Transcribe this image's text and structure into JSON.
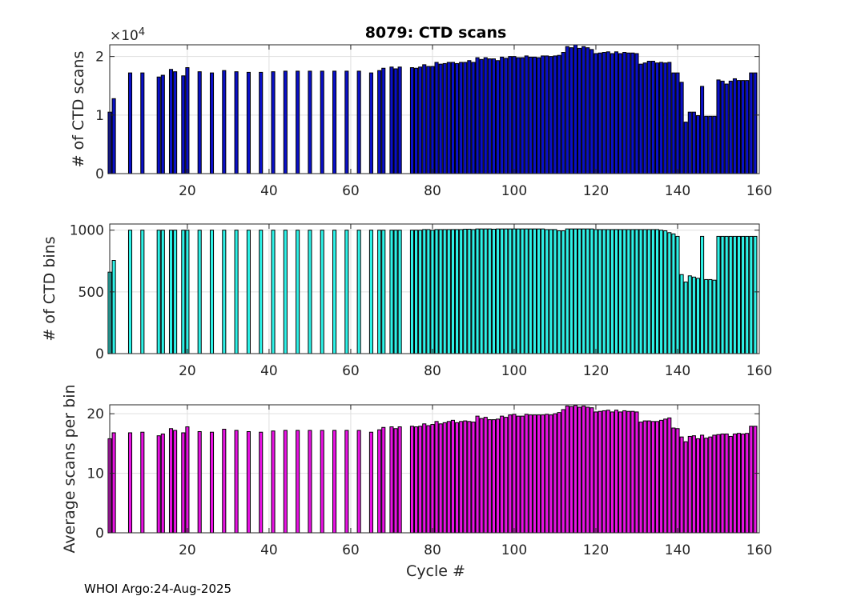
{
  "title": "8079: CTD scans",
  "footer": "WHOI Argo:24-Aug-2025",
  "x_label": "Cycle #",
  "chart_data": [
    {
      "type": "bar",
      "name": "scans",
      "ylabel": "# of CTD scans",
      "exponent_label": "×10",
      "exponent_power": "4",
      "color": "#0a10c8",
      "xlim": [
        1,
        160
      ],
      "ylim": [
        0,
        2.2
      ],
      "xticks": [
        20,
        40,
        60,
        80,
        100,
        120,
        140,
        160
      ],
      "yticks": [
        0,
        1,
        2
      ],
      "cycles": [
        1,
        2,
        6,
        9,
        13,
        14,
        16,
        17,
        19,
        20,
        23,
        26,
        29,
        32,
        35,
        38,
        41,
        44,
        47,
        50,
        53,
        56,
        59,
        62,
        65,
        67,
        68,
        70,
        71,
        72,
        75,
        76,
        77,
        78,
        79,
        80,
        81,
        82,
        83,
        84,
        85,
        86,
        87,
        88,
        89,
        90,
        91,
        92,
        93,
        94,
        95,
        96,
        97,
        98,
        99,
        100,
        101,
        102,
        103,
        104,
        105,
        106,
        107,
        108,
        109,
        110,
        111,
        112,
        113,
        114,
        115,
        116,
        117,
        118,
        119,
        120,
        121,
        122,
        123,
        124,
        125,
        126,
        127,
        128,
        129,
        130,
        131,
        132,
        133,
        134,
        135,
        136,
        137,
        138,
        139,
        140,
        141,
        142,
        143,
        144,
        145,
        146,
        147,
        148,
        149,
        150,
        151,
        152,
        153,
        154,
        155,
        156,
        157,
        158,
        159
      ],
      "values": [
        1.05,
        1.28,
        1.72,
        1.72,
        1.65,
        1.68,
        1.78,
        1.74,
        1.67,
        1.81,
        1.74,
        1.72,
        1.76,
        1.74,
        1.73,
        1.73,
        1.74,
        1.75,
        1.75,
        1.75,
        1.75,
        1.75,
        1.75,
        1.75,
        1.72,
        1.76,
        1.8,
        1.82,
        1.79,
        1.82,
        1.81,
        1.8,
        1.82,
        1.86,
        1.83,
        1.83,
        1.9,
        1.87,
        1.88,
        1.9,
        1.9,
        1.88,
        1.9,
        1.9,
        1.93,
        1.9,
        1.98,
        1.95,
        1.98,
        1.96,
        1.96,
        1.93,
        1.99,
        1.97,
        2.0,
        2.0,
        1.98,
        1.98,
        2.01,
        1.99,
        1.99,
        1.98,
        2.01,
        2.01,
        2.0,
        2.01,
        2.02,
        2.07,
        2.17,
        2.15,
        2.2,
        2.14,
        2.17,
        2.15,
        2.12,
        2.05,
        2.06,
        2.07,
        2.08,
        2.05,
        2.08,
        2.05,
        2.07,
        2.06,
        2.06,
        2.05,
        1.87,
        1.89,
        1.92,
        1.92,
        1.89,
        1.9,
        1.89,
        1.9,
        1.72,
        1.72,
        1.56,
        0.88,
        1.05,
        1.05,
        0.99,
        1.49,
        0.98,
        0.98,
        0.98,
        1.6,
        1.58,
        1.53,
        1.58,
        1.62,
        1.59,
        1.59,
        1.59,
        1.72,
        1.72
      ]
    },
    {
      "type": "bar",
      "name": "bins",
      "ylabel": "# of CTD bins",
      "color": "#2ef2e8",
      "xlim": [
        1,
        160
      ],
      "ylim": [
        0,
        1050
      ],
      "xticks": [
        20,
        40,
        60,
        80,
        100,
        120,
        140,
        160
      ],
      "yticks": [
        0,
        500,
        1000
      ],
      "cycles": [
        1,
        2,
        6,
        9,
        13,
        14,
        16,
        17,
        19,
        20,
        23,
        26,
        29,
        32,
        35,
        38,
        41,
        44,
        47,
        50,
        53,
        56,
        59,
        62,
        65,
        67,
        68,
        70,
        71,
        72,
        75,
        76,
        77,
        78,
        79,
        80,
        81,
        82,
        83,
        84,
        85,
        86,
        87,
        88,
        89,
        90,
        91,
        92,
        93,
        94,
        95,
        96,
        97,
        98,
        99,
        100,
        101,
        102,
        103,
        104,
        105,
        106,
        107,
        108,
        109,
        110,
        111,
        112,
        113,
        114,
        115,
        116,
        117,
        118,
        119,
        120,
        121,
        122,
        123,
        124,
        125,
        126,
        127,
        128,
        129,
        130,
        131,
        132,
        133,
        134,
        135,
        136,
        137,
        138,
        139,
        140,
        141,
        142,
        143,
        144,
        145,
        146,
        147,
        148,
        149,
        150,
        151,
        152,
        153,
        154,
        155,
        156,
        157,
        158,
        159
      ],
      "values": [
        660,
        755,
        1000,
        1000,
        1000,
        1000,
        1000,
        1000,
        1000,
        1000,
        1000,
        1000,
        1000,
        1000,
        1000,
        1000,
        1000,
        1000,
        1000,
        1000,
        1000,
        1000,
        1000,
        1000,
        1000,
        1000,
        1000,
        1000,
        1000,
        1000,
        1000,
        1000,
        1000,
        1005,
        1005,
        1000,
        1005,
        1005,
        1005,
        1005,
        1005,
        1005,
        1005,
        1008,
        1008,
        1005,
        1010,
        1010,
        1010,
        1010,
        1008,
        1010,
        1010,
        1010,
        1010,
        1010,
        1010,
        1010,
        1010,
        1010,
        1010,
        1010,
        1010,
        1005,
        1005,
        1005,
        995,
        995,
        1010,
        1010,
        1010,
        1010,
        1010,
        1010,
        1010,
        1005,
        1005,
        1005,
        1005,
        1005,
        1005,
        1005,
        1005,
        1005,
        1005,
        1005,
        1005,
        1005,
        1005,
        1005,
        1005,
        1000,
        995,
        980,
        970,
        950,
        640,
        580,
        630,
        620,
        610,
        950,
        600,
        600,
        595,
        950,
        950,
        950,
        950,
        950,
        950,
        950,
        950,
        950,
        950
      ]
    },
    {
      "type": "bar",
      "name": "average",
      "ylabel": "Average scans per bin",
      "color": "#e812e3",
      "xlim": [
        1,
        160
      ],
      "ylim": [
        0,
        21.5
      ],
      "xticks": [
        20,
        40,
        60,
        80,
        100,
        120,
        140,
        160
      ],
      "yticks": [
        0,
        10,
        20
      ],
      "cycles": [
        1,
        2,
        6,
        9,
        13,
        14,
        16,
        17,
        19,
        20,
        23,
        26,
        29,
        32,
        35,
        38,
        41,
        44,
        47,
        50,
        53,
        56,
        59,
        62,
        65,
        67,
        68,
        70,
        71,
        72,
        75,
        76,
        77,
        78,
        79,
        80,
        81,
        82,
        83,
        84,
        85,
        86,
        87,
        88,
        89,
        90,
        91,
        92,
        93,
        94,
        95,
        96,
        97,
        98,
        99,
        100,
        101,
        102,
        103,
        104,
        105,
        106,
        107,
        108,
        109,
        110,
        111,
        112,
        113,
        114,
        115,
        116,
        117,
        118,
        119,
        120,
        121,
        122,
        123,
        124,
        125,
        126,
        127,
        128,
        129,
        130,
        131,
        132,
        133,
        134,
        135,
        136,
        137,
        138,
        139,
        140,
        141,
        142,
        143,
        144,
        145,
        146,
        147,
        148,
        149,
        150,
        151,
        152,
        153,
        154,
        155,
        156,
        157,
        158,
        159
      ],
      "values": [
        15.8,
        16.8,
        16.8,
        16.9,
        16.3,
        16.6,
        17.5,
        17.2,
        16.8,
        17.8,
        17.0,
        16.9,
        17.4,
        17.2,
        17.0,
        16.9,
        17.1,
        17.2,
        17.2,
        17.2,
        17.2,
        17.2,
        17.2,
        17.2,
        16.9,
        17.3,
        17.7,
        17.8,
        17.5,
        17.8,
        17.9,
        17.8,
        17.9,
        18.3,
        18.0,
        18.2,
        18.7,
        18.3,
        18.5,
        18.7,
        18.9,
        18.5,
        18.7,
        18.8,
        18.7,
        18.6,
        19.6,
        19.2,
        19.4,
        19.0,
        19.0,
        19.1,
        19.6,
        19.4,
        19.8,
        19.9,
        19.6,
        19.6,
        19.9,
        19.8,
        19.8,
        19.8,
        19.8,
        19.9,
        19.8,
        20.0,
        20.2,
        20.7,
        21.3,
        21.2,
        21.4,
        21.1,
        21.3,
        21.1,
        21.0,
        20.3,
        20.4,
        20.5,
        20.6,
        20.3,
        20.6,
        20.3,
        20.5,
        20.4,
        20.4,
        20.3,
        18.6,
        18.8,
        18.8,
        18.7,
        18.7,
        18.9,
        19.1,
        19.3,
        17.6,
        17.5,
        16.1,
        15.3,
        16.2,
        16.3,
        15.8,
        16.4,
        15.9,
        16.1,
        16.4,
        16.5,
        16.6,
        16.6,
        16.2,
        16.6,
        16.7,
        16.6,
        16.7,
        17.9,
        17.9
      ]
    }
  ]
}
